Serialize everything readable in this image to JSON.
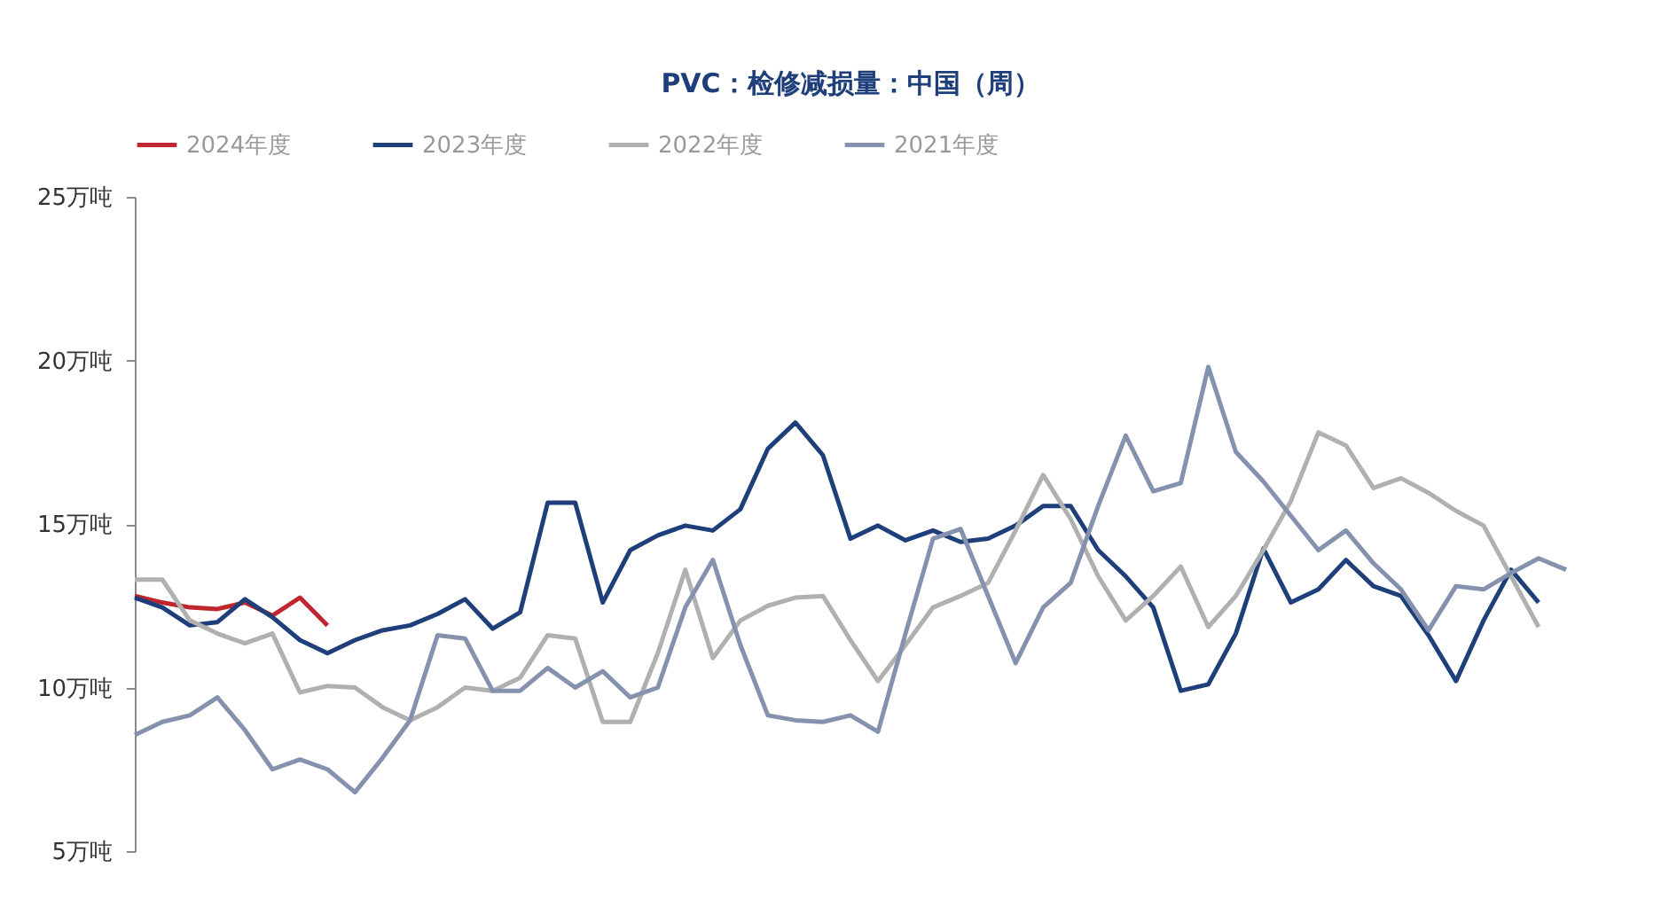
{
  "chart_data": {
    "type": "line",
    "title": "PVC：检修减损量：中国（周）",
    "categories": [
      null,
      null,
      null,
      null,
      null,
      null,
      null,
      null,
      null,
      null,
      null,
      null,
      null,
      null,
      null,
      null,
      null,
      null,
      null,
      null,
      null,
      null,
      null,
      null,
      null,
      null,
      null,
      null,
      null,
      null,
      null,
      null,
      null,
      null,
      null,
      null,
      null,
      null,
      null,
      null,
      null,
      null,
      null,
      null,
      null,
      null,
      null,
      null,
      null,
      null,
      null,
      null,
      null
    ],
    "series": [
      {
        "name": "2024年度",
        "color": "#c0262d",
        "values": [
          12.8,
          12.6,
          12.45,
          12.4,
          12.6,
          12.2,
          12.75,
          11.9,
          null,
          null,
          null,
          null,
          null,
          null,
          null,
          null,
          null,
          null,
          null,
          null,
          null,
          null,
          null,
          null,
          null,
          null,
          null,
          null,
          null,
          null,
          null,
          null,
          null,
          null,
          null,
          null,
          null,
          null,
          null,
          null,
          null,
          null,
          null,
          null,
          null,
          null,
          null,
          null,
          null,
          null,
          null,
          null,
          null
        ]
      },
      {
        "name": "2023年度",
        "color": "#1f3f7a",
        "values": [
          12.75,
          12.45,
          11.9,
          12.0,
          12.7,
          12.15,
          11.45,
          11.05,
          11.45,
          11.75,
          11.9,
          12.25,
          12.7,
          11.8,
          12.3,
          15.65,
          15.65,
          12.6,
          14.2,
          14.65,
          14.95,
          14.8,
          15.45,
          17.3,
          18.1,
          17.1,
          14.55,
          14.95,
          14.5,
          14.8,
          14.45,
          14.55,
          14.95,
          15.55,
          15.55,
          14.2,
          13.4,
          12.45,
          9.9,
          10.1,
          11.65,
          14.25,
          12.6,
          13.0,
          13.9,
          13.1,
          12.8,
          11.6,
          10.2,
          12.05,
          13.6,
          12.6,
          null
        ]
      },
      {
        "name": "2022年度",
        "color": "#b0b0b0",
        "values": [
          13.3,
          13.3,
          12.05,
          11.65,
          11.35,
          11.65,
          9.85,
          10.05,
          10.0,
          9.4,
          9.0,
          9.4,
          10.0,
          9.9,
          10.3,
          11.6,
          11.5,
          8.95,
          8.95,
          11.05,
          13.6,
          10.9,
          12.05,
          12.5,
          12.75,
          12.8,
          11.45,
          10.2,
          11.3,
          12.45,
          12.8,
          13.2,
          14.8,
          16.5,
          15.15,
          13.4,
          12.05,
          12.8,
          13.7,
          11.85,
          12.8,
          14.2,
          15.7,
          17.8,
          17.4,
          16.1,
          16.4,
          15.95,
          15.4,
          14.95,
          13.4,
          11.85,
          null
        ]
      },
      {
        "name": "2021年度",
        "color": "#8592ad",
        "values": [
          8.55,
          8.95,
          9.15,
          9.7,
          8.7,
          7.5,
          7.8,
          7.5,
          6.8,
          7.85,
          9.0,
          11.6,
          11.5,
          9.9,
          9.9,
          10.6,
          10.0,
          10.5,
          9.7,
          10.0,
          12.45,
          13.9,
          11.3,
          9.15,
          9.0,
          8.95,
          9.15,
          8.65,
          11.65,
          14.55,
          14.85,
          12.8,
          10.75,
          12.45,
          13.2,
          15.55,
          17.7,
          16.0,
          16.25,
          19.8,
          17.2,
          16.3,
          15.25,
          14.2,
          14.8,
          13.8,
          13.0,
          11.75,
          13.1,
          13.0,
          13.5,
          13.95,
          13.6
        ]
      }
    ],
    "ylim": [
      5,
      25
    ],
    "yticks": [
      {
        "value": 5,
        "label": "5万吨"
      },
      {
        "value": 10,
        "label": "10万吨"
      },
      {
        "value": 15,
        "label": "15万吨"
      },
      {
        "value": 20,
        "label": "20万吨"
      },
      {
        "value": 25,
        "label": "25万吨"
      }
    ],
    "legend": "top",
    "tick_labels": "y"
  }
}
